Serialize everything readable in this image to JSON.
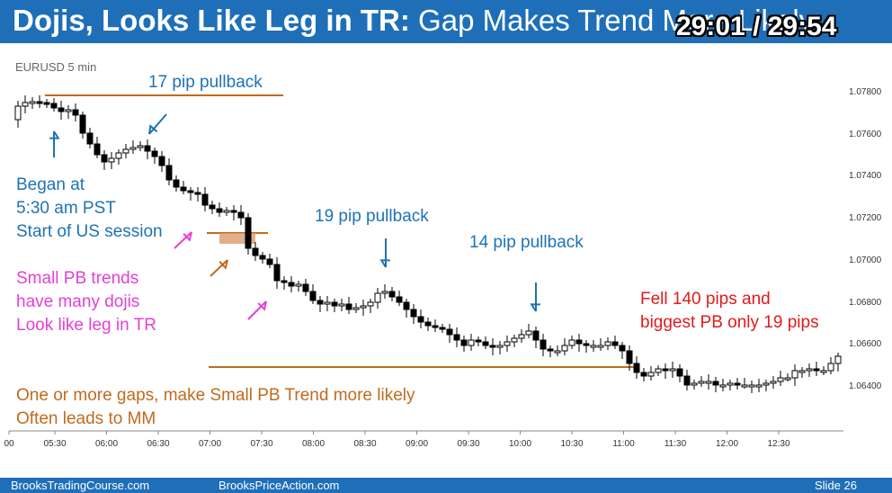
{
  "title": {
    "bold": "Dojis, Looks Like Leg in TR:",
    "rest": " Gap Makes Trend More Likely"
  },
  "timer": "29:01 / 29:54",
  "chart": {
    "symbol": "EURUSD 5 min",
    "price_labels": [
      "1.07800",
      "1.07600",
      "1.07400",
      "1.07200",
      "1.07000",
      "1.06800",
      "1.06600",
      "1.06400"
    ],
    "time_labels": [
      "00",
      "05:30",
      "06:00",
      "06:30",
      "07:00",
      "07:30",
      "08:00",
      "08:30",
      "09:00",
      "09:30",
      "10:00",
      "10:30",
      "11:00",
      "11:30",
      "12:00",
      "12:30"
    ],
    "colors": {
      "bull": "#ffffff",
      "bear": "#000000",
      "orange_line": "#c06b1e",
      "blue_arrow": "#1e73b3",
      "magenta_arrow": "#e43fd6"
    }
  },
  "annotations": {
    "pb17": "17 pip pullback",
    "began": [
      "Began at",
      "5:30 am PST",
      "Start of US session"
    ],
    "small_pb": [
      "Small PB trends",
      "have many dojis",
      "Look like leg in TR"
    ],
    "pb19": "19 pip pullback",
    "pb14": "14 pip pullback",
    "fell": [
      "Fell 140 pips and",
      "biggest PB only 19 pips"
    ],
    "gaps": [
      "One or more gaps, make Small PB Trend more likely",
      "Often leads to MM"
    ]
  },
  "footer": {
    "left": "BrooksTradingCourse.com",
    "center": "BrooksPriceAction.com",
    "slide": "Slide  26"
  }
}
